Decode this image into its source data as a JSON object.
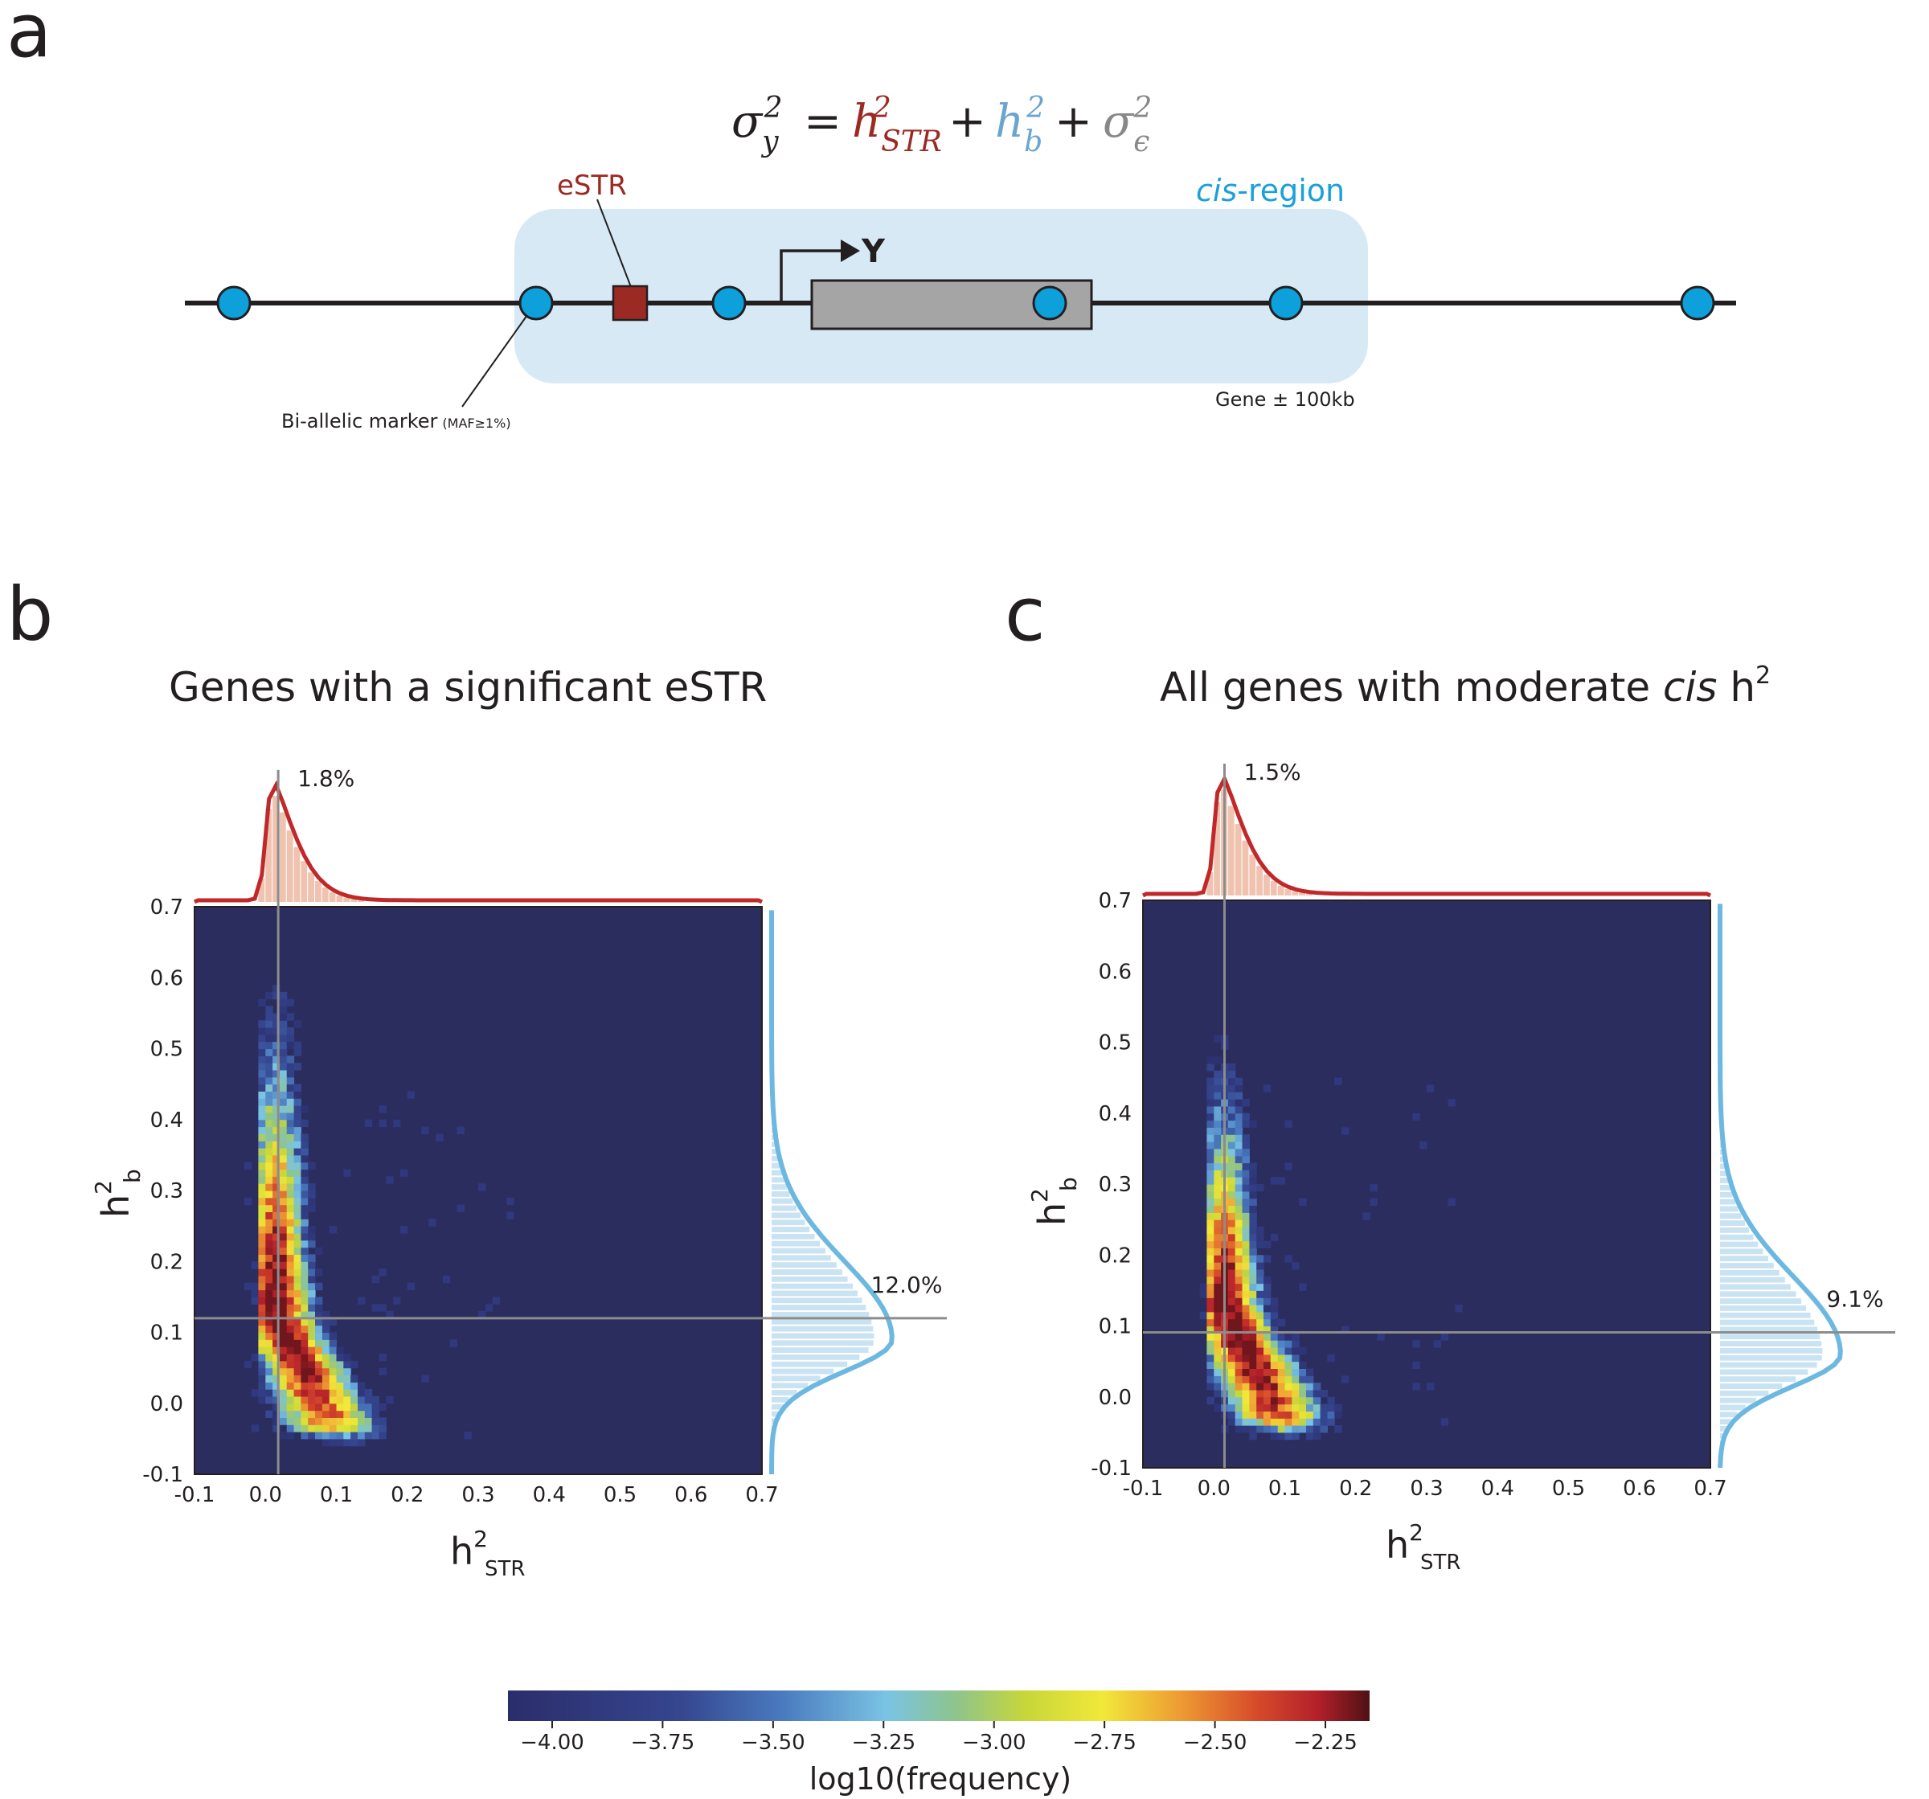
{
  "panel_a": {
    "letter": "a",
    "equation": {
      "sigma": "σ",
      "sigma_sub": "y",
      "sigma_sup": "2",
      "eq": "=",
      "hstr": "h",
      "hstr_sub": "STR",
      "hstr_sup": "2",
      "plus1": "+",
      "hb": "h",
      "hb_sub": "b",
      "hb_sup": "2",
      "plus2": "+",
      "eps": "σ",
      "eps_sub": "ϵ",
      "eps_sup": "2"
    },
    "estr_label": "eSTR",
    "cis_label_italic": "cis",
    "cis_label_rest": "-region",
    "gene_label": "Y",
    "gene_range_label": "Gene ± 100kb",
    "marker_label": "Bi-allelic marker",
    "marker_sub": "(MAF≥1%)",
    "colors": {
      "str": "#9b2a22",
      "b": "#6aa5d0",
      "eps": "#888888",
      "region": "#d6e9f5",
      "marker": "#0ea0db",
      "gene": "#a5a5a5",
      "cis_text": "#1ba0d8"
    }
  },
  "chart_data": [
    {
      "type": "heatmap",
      "panel": "b",
      "title": "Genes with a significant eSTR",
      "xlabel": "h",
      "xlabel_sup": "2",
      "xlabel_sub": "STR",
      "ylabel": "h",
      "ylabel_sup": "2",
      "ylabel_sub": "b",
      "xlim": [
        -0.1,
        0.7
      ],
      "ylim": [
        -0.1,
        0.7
      ],
      "xticks": [
        "-0.1",
        "0.0",
        "0.1",
        "0.2",
        "0.3",
        "0.4",
        "0.5",
        "0.6",
        "0.7"
      ],
      "yticks": [
        "-0.1",
        "0.0",
        "0.1",
        "0.2",
        "0.3",
        "0.4",
        "0.5",
        "0.6",
        "0.7"
      ],
      "median_x": 0.018,
      "median_y": 0.12,
      "median_x_label": "1.8%",
      "median_y_label": "12.0%",
      "top_peak_x": 0.01,
      "right_peak_y": 0.09
    },
    {
      "type": "heatmap",
      "panel": "c",
      "title_pre": "All genes with moderate ",
      "title_italic": "cis",
      "title_post": " h",
      "title_sup": "2",
      "xlabel": "h",
      "xlabel_sup": "2",
      "xlabel_sub": "STR",
      "ylabel": "h",
      "ylabel_sup": "2",
      "ylabel_sub": "b",
      "xlim": [
        -0.1,
        0.7
      ],
      "ylim": [
        -0.1,
        0.7
      ],
      "xticks": [
        "-0.1",
        "0.0",
        "0.1",
        "0.2",
        "0.3",
        "0.4",
        "0.5",
        "0.6",
        "0.7"
      ],
      "yticks": [
        "-0.1",
        "0.0",
        "0.1",
        "0.2",
        "0.3",
        "0.4",
        "0.5",
        "0.6",
        "0.7"
      ],
      "median_x": 0.015,
      "median_y": 0.091,
      "median_x_label": "1.5%",
      "median_y_label": "9.1%",
      "top_peak_x": 0.01,
      "right_peak_y": 0.06
    }
  ],
  "colorbar": {
    "label": "log10(frequency)",
    "range": [
      -4.1,
      -2.15
    ],
    "ticks": [
      "−4.00",
      "−3.75",
      "−3.50",
      "−3.25",
      "−3.00",
      "−2.75",
      "−2.50",
      "−2.25"
    ],
    "tick_values": [
      -4.0,
      -3.75,
      -3.5,
      -3.25,
      -3.0,
      -2.75,
      -2.5,
      -2.25
    ],
    "colors": [
      "#2b2d6b",
      "#2e3d8c",
      "#3b62b0",
      "#6bb8e0",
      "#8ec48c",
      "#c7d63a",
      "#f0e53a",
      "#f0a335",
      "#d9522a",
      "#b3222a",
      "#5e1418"
    ]
  },
  "panel_letters": {
    "b": "b",
    "c": "c"
  }
}
